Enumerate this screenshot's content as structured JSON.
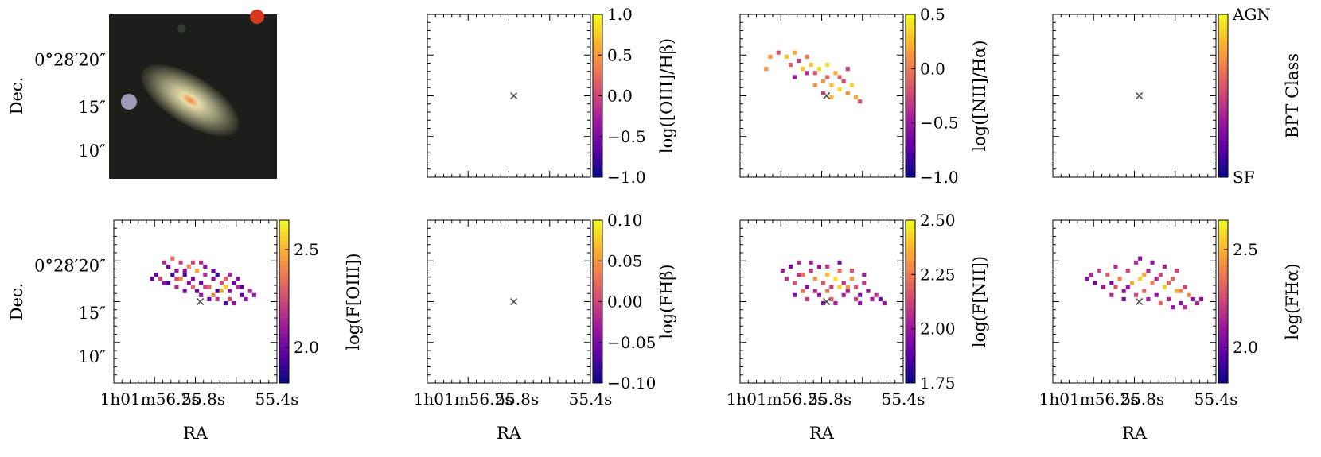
{
  "chart_data": [
    {
      "id": "p-image",
      "type": "image",
      "ylabel": "Dec.",
      "y_ticks": [
        "0°28′20″",
        "15″",
        "10″"
      ],
      "center_marker": false
    },
    {
      "id": "p-oiii-hb",
      "type": "heatmap",
      "colorbar_label": "log([OIII]/Hβ)",
      "colorbar_ticks": [
        "1.0",
        "0.5",
        "0.0",
        "−0.5",
        "−1.0"
      ],
      "clim": [
        -1.0,
        1.0
      ],
      "pixels": [],
      "center_marker": true
    },
    {
      "id": "p-nii-ha",
      "type": "heatmap",
      "colorbar_label": "log([NII]/Hα)",
      "colorbar_ticks": [
        "0.5",
        "0.0",
        "−0.5",
        "−1.0"
      ],
      "clim": [
        -1.0,
        0.5
      ],
      "pixels": [
        [
          3,
          6,
          0.1
        ],
        [
          5,
          5,
          -0.2
        ],
        [
          7,
          6,
          0.3
        ],
        [
          8,
          8,
          -0.1
        ],
        [
          9,
          5,
          0.2
        ],
        [
          10,
          7,
          -0.3
        ],
        [
          12,
          6,
          0.0
        ],
        [
          13,
          8,
          0.3
        ],
        [
          14,
          10,
          -0.2
        ],
        [
          15,
          9,
          0.4
        ],
        [
          16,
          12,
          0.1
        ],
        [
          17,
          11,
          -0.1
        ],
        [
          18,
          13,
          0.3
        ],
        [
          19,
          10,
          0.2
        ],
        [
          20,
          14,
          0.4
        ],
        [
          21,
          12,
          -0.2
        ],
        [
          22,
          15,
          0.1
        ],
        [
          23,
          13,
          0.35
        ],
        [
          24,
          16,
          0.2
        ],
        [
          12,
          10,
          -0.4
        ],
        [
          14,
          13,
          0.1
        ],
        [
          16,
          15,
          -0.3
        ],
        [
          18,
          16,
          0.25
        ],
        [
          20,
          11,
          -0.1
        ],
        [
          11,
          9,
          0.3
        ],
        [
          9,
          11,
          -0.5
        ],
        [
          2,
          9,
          0.1
        ],
        [
          25,
          17,
          -0.2
        ],
        [
          17,
          8,
          0.4
        ],
        [
          22,
          9,
          -0.3
        ]
      ],
      "center_marker": true
    },
    {
      "id": "p-bpt",
      "type": "heatmap",
      "colorbar_label": "BPT Class",
      "colorbar_ticks": [
        "AGN",
        "SF"
      ],
      "pixels": [],
      "center_marker": true
    },
    {
      "id": "p-foiii",
      "type": "heatmap",
      "colorbar_label": "log(F[OIII])",
      "colorbar_ticks": [
        "2.5",
        "2.0"
      ],
      "clim": [
        1.7,
        2.7
      ],
      "pixels": [
        [
          8,
          6,
          2.1
        ],
        [
          9,
          7,
          1.9
        ],
        [
          10,
          5,
          2.3
        ],
        [
          11,
          8,
          2.0
        ],
        [
          12,
          6,
          2.2
        ],
        [
          13,
          9,
          1.85
        ],
        [
          14,
          7,
          2.4
        ],
        [
          15,
          10,
          2.0
        ],
        [
          16,
          8,
          2.5
        ],
        [
          17,
          11,
          1.9
        ],
        [
          18,
          9,
          2.1
        ],
        [
          19,
          12,
          2.3
        ],
        [
          20,
          10,
          2.0
        ],
        [
          21,
          13,
          1.8
        ],
        [
          22,
          11,
          2.2
        ],
        [
          23,
          12,
          2.6
        ],
        [
          24,
          13,
          2.0
        ],
        [
          25,
          11,
          1.9
        ],
        [
          26,
          12,
          2.1
        ],
        [
          27,
          14,
          1.85
        ],
        [
          28,
          15,
          2.0
        ],
        [
          6,
          9,
          1.9
        ],
        [
          7,
          10,
          2.2
        ],
        [
          9,
          11,
          1.8
        ],
        [
          11,
          12,
          2.1
        ],
        [
          13,
          13,
          1.95
        ],
        [
          15,
          12,
          2.3
        ],
        [
          17,
          14,
          2.0
        ],
        [
          19,
          15,
          1.9
        ],
        [
          21,
          15,
          2.1
        ],
        [
          23,
          16,
          1.85
        ],
        [
          25,
          16,
          2.0
        ],
        [
          12,
          10,
          2.4
        ],
        [
          14,
          11,
          2.0
        ],
        [
          16,
          13,
          1.9
        ],
        [
          18,
          12,
          2.2
        ],
        [
          20,
          14,
          2.4
        ],
        [
          22,
          13,
          2.5
        ],
        [
          24,
          15,
          2.2
        ],
        [
          10,
          9,
          1.8
        ],
        [
          8,
          11,
          2.0
        ],
        [
          5,
          10,
          1.9
        ],
        [
          26,
          10,
          2.0
        ],
        [
          27,
          12,
          1.85
        ],
        [
          29,
          13,
          2.1
        ],
        [
          18,
          7,
          2.0
        ],
        [
          20,
          8,
          1.9
        ],
        [
          15,
          6,
          2.2
        ],
        [
          13,
          8,
          2.0
        ],
        [
          24,
          9,
          2.1
        ],
        [
          23,
          10,
          2.3
        ],
        [
          21,
          9,
          1.8
        ],
        [
          17,
          6,
          2.1
        ],
        [
          11,
          10,
          2.2
        ],
        [
          30,
          14,
          2.0
        ]
      ],
      "center_marker": true
    },
    {
      "id": "p-fhb",
      "type": "heatmap",
      "colorbar_label": "log(FHβ)",
      "colorbar_ticks": [
        "0.10",
        "0.05",
        "0.00",
        "−0.05",
        "−0.10"
      ],
      "clim": [
        -0.1,
        0.1
      ],
      "pixels": [],
      "center_marker": true
    },
    {
      "id": "p-fnii",
      "type": "heatmap",
      "colorbar_label": "log(F[NII])",
      "colorbar_ticks": [
        "2.50",
        "2.25",
        "2.00",
        "1.75"
      ],
      "clim": [
        1.55,
        2.55
      ],
      "pixels": [
        [
          6,
          8,
          1.9
        ],
        [
          7,
          10,
          2.0
        ],
        [
          8,
          7,
          1.8
        ],
        [
          9,
          11,
          2.1
        ],
        [
          10,
          6,
          1.95
        ],
        [
          11,
          9,
          2.2
        ],
        [
          12,
          12,
          1.85
        ],
        [
          13,
          8,
          2.0
        ],
        [
          14,
          10,
          2.3
        ],
        [
          15,
          7,
          1.9
        ],
        [
          16,
          11,
          2.1
        ],
        [
          17,
          9,
          2.4
        ],
        [
          18,
          12,
          2.0
        ],
        [
          19,
          10,
          2.5
        ],
        [
          20,
          8,
          2.2
        ],
        [
          21,
          11,
          2.0
        ],
        [
          22,
          13,
          1.9
        ],
        [
          23,
          10,
          2.3
        ],
        [
          24,
          12,
          2.1
        ],
        [
          25,
          14,
          1.8
        ],
        [
          26,
          11,
          2.0
        ],
        [
          27,
          13,
          1.85
        ],
        [
          28,
          15,
          1.9
        ],
        [
          29,
          14,
          2.0
        ],
        [
          30,
          15,
          1.75
        ],
        [
          31,
          16,
          1.9
        ],
        [
          9,
          14,
          1.8
        ],
        [
          12,
          15,
          2.0
        ],
        [
          15,
          14,
          1.85
        ],
        [
          18,
          15,
          2.1
        ],
        [
          21,
          14,
          1.9
        ],
        [
          24,
          15,
          2.0
        ],
        [
          11,
          13,
          2.2
        ],
        [
          14,
          13,
          1.95
        ],
        [
          17,
          13,
          2.2
        ],
        [
          20,
          12,
          2.45
        ],
        [
          22,
          12,
          2.3
        ],
        [
          16,
          16,
          1.8
        ],
        [
          19,
          16,
          1.9
        ],
        [
          25,
          16,
          1.85
        ],
        [
          10,
          9,
          2.0
        ],
        [
          13,
          6,
          1.9
        ],
        [
          17,
          7,
          2.0
        ],
        [
          20,
          6,
          1.8
        ],
        [
          23,
          8,
          2.1
        ],
        [
          26,
          9,
          1.9
        ]
      ],
      "center_marker": true
    },
    {
      "id": "p-fha",
      "type": "heatmap",
      "colorbar_label": "log(FHα)",
      "colorbar_ticks": [
        "2.5",
        "2.0"
      ],
      "clim": [
        1.6,
        2.6
      ],
      "pixels": [
        [
          4,
          10,
          1.9
        ],
        [
          5,
          9,
          2.0
        ],
        [
          6,
          11,
          1.8
        ],
        [
          7,
          8,
          2.1
        ],
        [
          8,
          12,
          1.95
        ],
        [
          9,
          9,
          2.2
        ],
        [
          10,
          11,
          1.85
        ],
        [
          11,
          7,
          2.0
        ],
        [
          12,
          10,
          2.3
        ],
        [
          13,
          13,
          1.9
        ],
        [
          14,
          8,
          2.1
        ],
        [
          15,
          11,
          2.4
        ],
        [
          16,
          6,
          2.0
        ],
        [
          17,
          10,
          2.5
        ],
        [
          18,
          13,
          2.2
        ],
        [
          19,
          8,
          2.0
        ],
        [
          20,
          11,
          2.3
        ],
        [
          21,
          14,
          1.9
        ],
        [
          22,
          9,
          2.1
        ],
        [
          23,
          12,
          2.5
        ],
        [
          24,
          15,
          2.0
        ],
        [
          25,
          10,
          2.2
        ],
        [
          26,
          13,
          2.4
        ],
        [
          27,
          16,
          1.9
        ],
        [
          28,
          12,
          2.1
        ],
        [
          29,
          14,
          2.3
        ],
        [
          30,
          15,
          1.85
        ],
        [
          31,
          16,
          2.0
        ],
        [
          32,
          15,
          1.9
        ],
        [
          10,
          14,
          2.0
        ],
        [
          13,
          15,
          1.85
        ],
        [
          16,
          14,
          2.1
        ],
        [
          19,
          15,
          1.95
        ],
        [
          22,
          16,
          2.2
        ],
        [
          25,
          17,
          1.9
        ],
        [
          28,
          17,
          2.0
        ],
        [
          11,
          12,
          2.15
        ],
        [
          14,
          12,
          1.9
        ],
        [
          18,
          9,
          2.4
        ],
        [
          21,
          10,
          2.0
        ],
        [
          24,
          11,
          2.2
        ],
        [
          27,
          13,
          2.3
        ],
        [
          20,
          6,
          1.9
        ],
        [
          23,
          7,
          2.0
        ],
        [
          26,
          8,
          2.1
        ],
        [
          17,
          5,
          1.85
        ]
      ],
      "center_marker": true
    }
  ],
  "axes": {
    "xlabel": "RA",
    "ylabel": "Dec.",
    "x_ticks": [
      "1h01m56.2s",
      "55.8s",
      "55.4s"
    ],
    "y_ticks": [
      "0°28′20″",
      "15″",
      "10″"
    ]
  },
  "colors": {
    "colormap": [
      "#0d0887",
      "#5c01a6",
      "#9c179e",
      "#cc4778",
      "#ed7953",
      "#fdb42f",
      "#f0f921"
    ],
    "marker": "#555555"
  }
}
